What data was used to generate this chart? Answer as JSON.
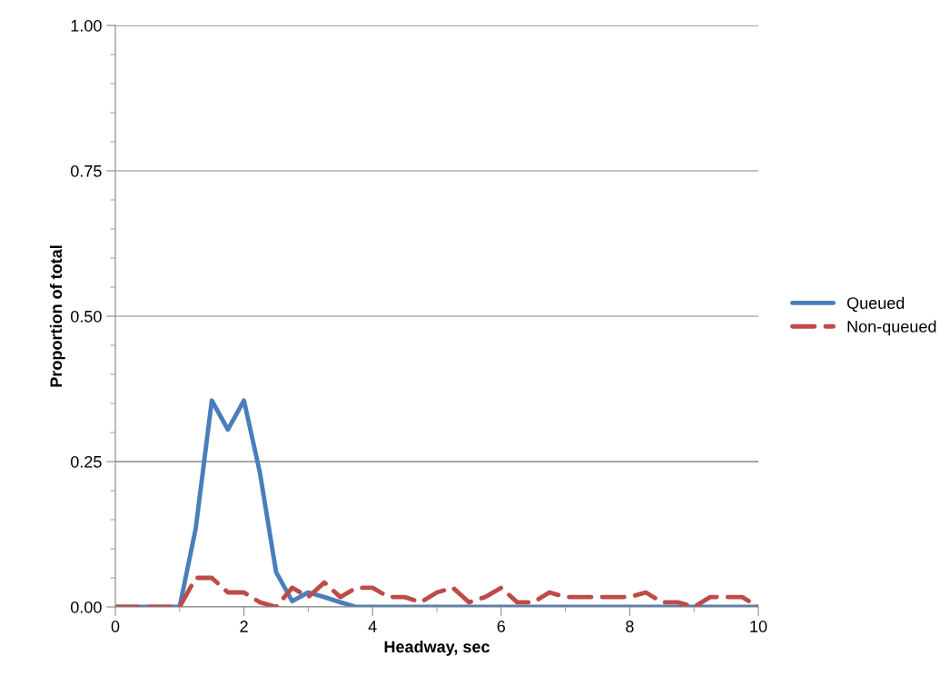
{
  "chart_data": {
    "type": "line",
    "xlabel": "Headway, sec",
    "ylabel": "Proportion of total",
    "x": [
      0,
      0.25,
      0.5,
      0.75,
      1,
      1.25,
      1.5,
      1.75,
      2,
      2.25,
      2.5,
      2.75,
      3,
      3.25,
      3.5,
      3.75,
      4,
      4.25,
      4.5,
      4.75,
      5,
      5.25,
      5.5,
      5.75,
      6,
      6.25,
      6.5,
      6.75,
      7,
      7.25,
      7.5,
      7.75,
      8,
      8.25,
      8.5,
      8.75,
      9,
      9.25,
      9.5,
      9.75,
      10
    ],
    "series": [
      {
        "name": "Queued",
        "color": "#4a7ebb",
        "line_style": "solid",
        "values": [
          0,
          0,
          0,
          0,
          0,
          0.135,
          0.355,
          0.305,
          0.355,
          0.23,
          0.06,
          0.01,
          0.025,
          0.017,
          0.008,
          0,
          0,
          0,
          0,
          0,
          0,
          0,
          0,
          0,
          0,
          0,
          0,
          0,
          0,
          0,
          0,
          0,
          0,
          0,
          0,
          0,
          0,
          0,
          0,
          0,
          0
        ]
      },
      {
        "name": "Non-queued",
        "color": "#be4b48",
        "line_style": "dashed",
        "values": [
          0,
          0,
          0,
          0,
          0,
          0.05,
          0.05,
          0.025,
          0.025,
          0.008,
          0,
          0.033,
          0.017,
          0.042,
          0.017,
          0.033,
          0.033,
          0.017,
          0.017,
          0.008,
          0.025,
          0.033,
          0.008,
          0.017,
          0.033,
          0.008,
          0.008,
          0.025,
          0.017,
          0.017,
          0.017,
          0.017,
          0.017,
          0.025,
          0.008,
          0.008,
          0,
          0.017,
          0.017,
          0.017,
          0
        ]
      }
    ],
    "xlim": [
      0,
      10
    ],
    "xticks": [
      0,
      2,
      4,
      6,
      8,
      10
    ],
    "ylim": [
      0,
      1
    ],
    "yticks": [
      {
        "value": 0,
        "label": "0.00"
      },
      {
        "value": 0.25,
        "label": "0.25"
      },
      {
        "value": 0.5,
        "label": "0.50"
      },
      {
        "value": 0.75,
        "label": "0.75"
      },
      {
        "value": 1,
        "label": "1.00"
      }
    ],
    "grid": "y",
    "legend": "right",
    "marker": "none"
  }
}
